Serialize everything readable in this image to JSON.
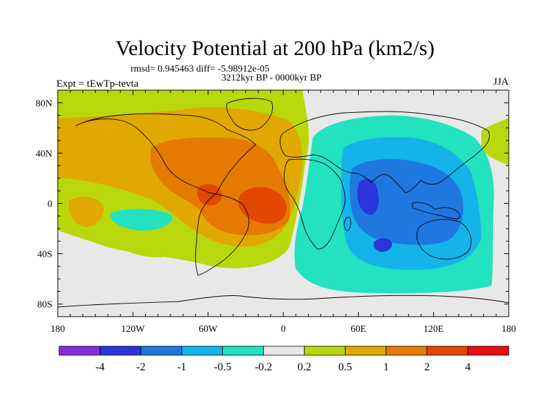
{
  "chart_data": {
    "type": "filled-contour-map",
    "title": "Velocity Potential at 200 hPa (km2/s)",
    "stats": "rmsd= 0.945463 diff= -5.98912e-05",
    "subtitle": "3212kyr BP - 0000kyr BP",
    "left_label": "Expt = tEwTp-tevta",
    "right_label": "JJA",
    "x_ticks": [
      "180",
      "120W",
      "60W",
      "0",
      "60E",
      "120E",
      "180"
    ],
    "x_tick_values": [
      -180,
      -120,
      -60,
      0,
      60,
      120,
      180
    ],
    "y_ticks": [
      "80N",
      "40N",
      "0",
      "40S",
      "80S"
    ],
    "y_tick_values": [
      80,
      40,
      0,
      -40,
      -80
    ],
    "xlim": [
      -180,
      180
    ],
    "ylim": [
      -90,
      90
    ],
    "colorbar": {
      "labels": [
        "-4",
        "-2",
        "-1",
        "-0.5",
        "-0.2",
        "0.2",
        "0.5",
        "1",
        "2",
        "4"
      ],
      "colors": [
        "#8a2be2",
        "#2b35d9",
        "#1f78e0",
        "#14b4ea",
        "#22e2c0",
        "#e8e8e8",
        "#b9d80c",
        "#e0a800",
        "#e47a00",
        "#e34700",
        "#e61010"
      ]
    },
    "regions": [
      {
        "name": "background",
        "value_range": "-0.2..0.2",
        "color": "#e8e8e8"
      },
      {
        "name": "positive-broad",
        "value_range": "0.2..0.5",
        "color": "#b9d80c"
      },
      {
        "name": "positive-atlantic",
        "value_range": "0.5..1",
        "color": "#e0a800"
      },
      {
        "name": "positive-core",
        "value_range": "1..2",
        "color": "#e47a00"
      },
      {
        "name": "positive-peak",
        "value_range": "2..4",
        "color": "#e34700"
      },
      {
        "name": "negative-broad",
        "value_range": "-0.5..-0.2",
        "color": "#22e2c0"
      },
      {
        "name": "negative-indian",
        "value_range": "-1..-0.5",
        "color": "#14b4ea"
      },
      {
        "name": "negative-core",
        "value_range": "-2..-1",
        "color": "#1f78e0"
      },
      {
        "name": "negative-peak",
        "value_range": "-4..-2",
        "color": "#2b35d9"
      }
    ]
  }
}
